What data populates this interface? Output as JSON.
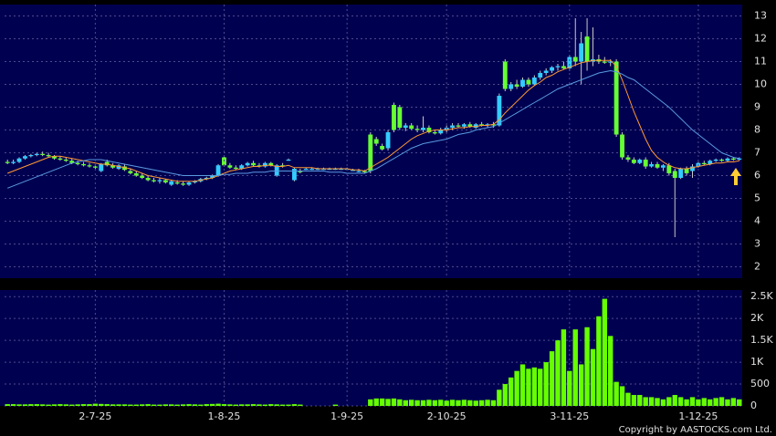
{
  "chart_data": [
    {
      "type": "candlestick",
      "up_color": "#33ccff",
      "down_color": "#66ff33",
      "wick_color": "#c8c8c8",
      "ylim": [
        1.5,
        13.5
      ],
      "yticks": [
        2,
        3,
        4,
        5,
        6,
        7,
        8,
        9,
        10,
        11,
        12,
        13
      ],
      "grid": true,
      "candles": [
        [
          6.6,
          6.7,
          6.5,
          6.55
        ],
        [
          6.55,
          6.7,
          6.5,
          6.6
        ],
        [
          6.6,
          6.8,
          6.55,
          6.75
        ],
        [
          6.75,
          6.9,
          6.7,
          6.85
        ],
        [
          6.85,
          6.95,
          6.8,
          6.9
        ],
        [
          6.9,
          7.0,
          6.85,
          6.95
        ],
        [
          6.95,
          7.05,
          6.85,
          6.9
        ],
        [
          6.9,
          7.0,
          6.8,
          6.85
        ],
        [
          6.85,
          6.9,
          6.7,
          6.75
        ],
        [
          6.75,
          6.85,
          6.65,
          6.7
        ],
        [
          6.7,
          6.8,
          6.6,
          6.65
        ],
        [
          6.65,
          6.75,
          6.5,
          6.55
        ],
        [
          6.55,
          6.65,
          6.45,
          6.5
        ],
        [
          6.5,
          6.6,
          6.4,
          6.45
        ],
        [
          6.45,
          6.55,
          6.35,
          6.4
        ],
        [
          6.4,
          6.5,
          6.3,
          6.35
        ],
        [
          6.2,
          6.55,
          6.15,
          6.5
        ],
        [
          6.6,
          6.7,
          6.4,
          6.45
        ],
        [
          6.45,
          6.55,
          6.3,
          6.35
        ],
        [
          6.3,
          6.5,
          6.25,
          6.45
        ],
        [
          6.4,
          6.5,
          6.2,
          6.25
        ],
        [
          6.2,
          6.3,
          6.05,
          6.1
        ],
        [
          6.1,
          6.2,
          5.95,
          6.0
        ],
        [
          6.0,
          6.1,
          5.85,
          5.9
        ],
        [
          5.9,
          6.0,
          5.75,
          5.8
        ],
        [
          5.8,
          5.9,
          5.7,
          5.75
        ],
        [
          5.75,
          5.9,
          5.65,
          5.8
        ],
        [
          5.8,
          5.85,
          5.65,
          5.7
        ],
        [
          5.6,
          5.8,
          5.55,
          5.75
        ],
        [
          5.7,
          5.8,
          5.6,
          5.65
        ],
        [
          5.65,
          5.75,
          5.55,
          5.6
        ],
        [
          5.6,
          5.75,
          5.55,
          5.7
        ],
        [
          5.7,
          5.8,
          5.65,
          5.75
        ],
        [
          5.75,
          5.9,
          5.7,
          5.85
        ],
        [
          5.85,
          5.95,
          5.8,
          5.9
        ],
        [
          5.9,
          6.05,
          5.85,
          6.0
        ],
        [
          6.0,
          6.5,
          5.95,
          6.45
        ],
        [
          6.8,
          6.85,
          6.4,
          6.45
        ],
        [
          6.45,
          6.55,
          6.3,
          6.35
        ],
        [
          6.35,
          6.45,
          6.25,
          6.3
        ],
        [
          6.3,
          6.5,
          6.25,
          6.45
        ],
        [
          6.45,
          6.6,
          6.4,
          6.55
        ],
        [
          6.55,
          6.65,
          6.4,
          6.45
        ],
        [
          6.45,
          6.55,
          6.35,
          6.4
        ],
        [
          6.4,
          6.6,
          6.35,
          6.55
        ],
        [
          6.55,
          6.6,
          6.4,
          6.45
        ],
        [
          6.0,
          6.5,
          5.95,
          6.45
        ],
        [
          6.45,
          6.55,
          6.35,
          6.4
        ],
        [
          6.7,
          6.75,
          6.65,
          6.7
        ],
        [
          5.8,
          6.35,
          5.75,
          6.3
        ],
        [
          6.2,
          6.3,
          6.1,
          6.15
        ],
        [
          6.3,
          6.35,
          6.25,
          6.3
        ],
        [
          6.3,
          6.35,
          6.25,
          6.3
        ],
        [
          6.3,
          6.35,
          6.25,
          6.3
        ],
        [
          6.3,
          6.35,
          6.25,
          6.3
        ],
        [
          6.3,
          6.35,
          6.25,
          6.3
        ],
        [
          6.3,
          6.35,
          6.25,
          6.3
        ],
        [
          6.3,
          6.35,
          6.25,
          6.3
        ],
        [
          6.3,
          6.35,
          6.25,
          6.3
        ],
        [
          6.25,
          6.3,
          6.2,
          6.25
        ],
        [
          6.2,
          6.3,
          6.15,
          6.2
        ],
        [
          6.2,
          6.25,
          6.1,
          6.15
        ],
        [
          7.8,
          7.9,
          6.1,
          6.2
        ],
        [
          7.6,
          7.7,
          7.3,
          7.4
        ],
        [
          7.3,
          7.4,
          7.1,
          7.15
        ],
        [
          7.2,
          8.0,
          7.1,
          7.9
        ],
        [
          9.1,
          9.2,
          7.9,
          8.0
        ],
        [
          9.0,
          9.1,
          8.0,
          8.1
        ],
        [
          8.1,
          8.3,
          7.95,
          8.2
        ],
        [
          8.2,
          8.3,
          8.0,
          8.05
        ],
        [
          8.05,
          8.2,
          7.9,
          8.0
        ],
        [
          8.0,
          8.6,
          7.9,
          8.1
        ],
        [
          8.1,
          8.2,
          7.85,
          7.9
        ],
        [
          7.9,
          8.0,
          7.8,
          7.85
        ],
        [
          7.85,
          8.1,
          7.8,
          8.0
        ],
        [
          8.0,
          8.2,
          7.9,
          8.1
        ],
        [
          8.1,
          8.3,
          8.0,
          8.2
        ],
        [
          8.2,
          8.3,
          8.1,
          8.15
        ],
        [
          8.15,
          8.3,
          8.05,
          8.25
        ],
        [
          8.25,
          8.35,
          8.1,
          8.15
        ],
        [
          8.1,
          8.3,
          8.05,
          8.25
        ],
        [
          8.25,
          8.35,
          8.15,
          8.2
        ],
        [
          8.2,
          8.3,
          8.1,
          8.25
        ],
        [
          8.25,
          8.35,
          8.1,
          8.2
        ],
        [
          8.2,
          9.6,
          8.15,
          9.5
        ],
        [
          11.0,
          11.1,
          9.7,
          9.8
        ],
        [
          9.8,
          10.1,
          9.7,
          10.0
        ],
        [
          10.0,
          10.2,
          9.8,
          9.9
        ],
        [
          9.9,
          10.3,
          9.85,
          10.2
        ],
        [
          10.2,
          10.3,
          9.9,
          10.0
        ],
        [
          10.0,
          10.4,
          9.95,
          10.3
        ],
        [
          10.3,
          10.6,
          10.2,
          10.5
        ],
        [
          10.5,
          10.7,
          10.4,
          10.6
        ],
        [
          10.6,
          10.8,
          10.5,
          10.75
        ],
        [
          10.75,
          10.9,
          10.6,
          10.8
        ],
        [
          10.8,
          11.0,
          10.65,
          10.7
        ],
        [
          10.7,
          11.3,
          10.6,
          11.2
        ],
        [
          11.2,
          12.9,
          10.8,
          11.0
        ],
        [
          11.0,
          12.3,
          10.0,
          11.8
        ],
        [
          12.1,
          12.9,
          10.6,
          11.0
        ],
        [
          11.0,
          12.5,
          10.8,
          11.1
        ],
        [
          11.1,
          11.3,
          10.9,
          11.0
        ],
        [
          11.0,
          11.2,
          10.9,
          10.95
        ],
        [
          10.95,
          11.1,
          10.8,
          11.0
        ],
        [
          11.0,
          11.1,
          7.7,
          7.8
        ],
        [
          7.8,
          7.9,
          6.7,
          6.8
        ],
        [
          6.8,
          6.9,
          6.6,
          6.7
        ],
        [
          6.7,
          6.8,
          6.5,
          6.55
        ],
        [
          6.55,
          6.75,
          6.5,
          6.7
        ],
        [
          6.7,
          6.8,
          6.3,
          6.4
        ],
        [
          6.4,
          6.6,
          6.35,
          6.5
        ],
        [
          6.5,
          6.6,
          6.3,
          6.35
        ],
        [
          6.35,
          6.5,
          6.2,
          6.45
        ],
        [
          6.45,
          6.55,
          6.0,
          6.1
        ],
        [
          6.2,
          6.3,
          3.3,
          5.9
        ],
        [
          5.9,
          6.35,
          5.85,
          6.3
        ],
        [
          6.3,
          6.4,
          6.0,
          6.1
        ],
        [
          6.2,
          6.5,
          5.9,
          6.4
        ],
        [
          6.4,
          6.6,
          6.35,
          6.55
        ],
        [
          6.55,
          6.65,
          6.45,
          6.5
        ],
        [
          6.5,
          6.7,
          6.45,
          6.65
        ],
        [
          6.65,
          6.75,
          6.6,
          6.7
        ],
        [
          6.7,
          6.75,
          6.6,
          6.65
        ],
        [
          6.65,
          6.8,
          6.6,
          6.75
        ],
        [
          6.75,
          6.8,
          6.65,
          6.7
        ],
        [
          6.7,
          6.8,
          6.65,
          6.75
        ]
      ],
      "series": [
        {
          "color": "#ff9933",
          "values": [
            6.1,
            6.2,
            6.3,
            6.4,
            6.5,
            6.6,
            6.7,
            6.8,
            6.85,
            6.85,
            6.8,
            6.75,
            6.7,
            6.65,
            6.6,
            6.55,
            6.5,
            6.5,
            6.45,
            6.4,
            6.35,
            6.3,
            6.2,
            6.1,
            6.0,
            5.95,
            5.9,
            5.85,
            5.8,
            5.75,
            5.75,
            5.75,
            5.75,
            5.8,
            5.85,
            5.9,
            6.0,
            6.1,
            6.2,
            6.25,
            6.3,
            6.35,
            6.4,
            6.4,
            6.45,
            6.45,
            6.4,
            6.4,
            6.45,
            6.35,
            6.35,
            6.35,
            6.35,
            6.3,
            6.3,
            6.3,
            6.3,
            6.3,
            6.3,
            6.25,
            6.25,
            6.2,
            6.35,
            6.5,
            6.65,
            6.8,
            7.0,
            7.2,
            7.4,
            7.6,
            7.75,
            7.85,
            7.95,
            8.0,
            8.0,
            8.0,
            8.05,
            8.1,
            8.1,
            8.15,
            8.15,
            8.2,
            8.2,
            8.25,
            8.45,
            8.75,
            9.0,
            9.25,
            9.5,
            9.75,
            9.95,
            10.1,
            10.3,
            10.4,
            10.55,
            10.65,
            10.75,
            10.85,
            10.95,
            11.0,
            11.05,
            11.05,
            11.05,
            11.05,
            10.8,
            10.2,
            9.5,
            8.8,
            8.2,
            7.6,
            7.1,
            6.8,
            6.6,
            6.45,
            6.35,
            6.3,
            6.3,
            6.35,
            6.4,
            6.45,
            6.5,
            6.55,
            6.55,
            6.6,
            6.6,
            6.65
          ]
        },
        {
          "color": "#5a9be0",
          "values": [
            5.45,
            5.55,
            5.65,
            5.75,
            5.85,
            5.95,
            6.05,
            6.15,
            6.25,
            6.35,
            6.45,
            6.55,
            6.6,
            6.65,
            6.7,
            6.7,
            6.7,
            6.65,
            6.6,
            6.55,
            6.5,
            6.45,
            6.4,
            6.35,
            6.3,
            6.25,
            6.2,
            6.15,
            6.1,
            6.05,
            6.0,
            6.0,
            6.0,
            6.0,
            6.0,
            6.0,
            6.0,
            6.05,
            6.05,
            6.1,
            6.1,
            6.1,
            6.15,
            6.15,
            6.15,
            6.2,
            6.2,
            6.2,
            6.2,
            6.2,
            6.2,
            6.2,
            6.2,
            6.2,
            6.2,
            6.15,
            6.15,
            6.15,
            6.1,
            6.1,
            6.1,
            6.1,
            6.2,
            6.3,
            6.45,
            6.6,
            6.75,
            6.9,
            7.05,
            7.2,
            7.3,
            7.4,
            7.45,
            7.5,
            7.55,
            7.6,
            7.7,
            7.8,
            7.85,
            7.9,
            8.0,
            8.05,
            8.1,
            8.15,
            8.3,
            8.45,
            8.6,
            8.75,
            8.9,
            9.05,
            9.2,
            9.35,
            9.5,
            9.65,
            9.8,
            9.9,
            10.0,
            10.1,
            10.2,
            10.3,
            10.4,
            10.5,
            10.55,
            10.6,
            10.55,
            10.45,
            10.3,
            10.2,
            10.0,
            9.8,
            9.6,
            9.4,
            9.2,
            9.0,
            8.75,
            8.5,
            8.25,
            8.0,
            7.8,
            7.6,
            7.4,
            7.2,
            7.0,
            6.9,
            6.8,
            6.75
          ]
        }
      ]
    },
    {
      "type": "bar",
      "color": "#66ff00",
      "grid": true,
      "ylim": [
        0,
        2650
      ],
      "yticks": [
        0,
        500,
        {
          "value": 1000,
          "label": "1K"
        },
        {
          "value": 1500,
          "label": "1.5K"
        },
        {
          "value": 2000,
          "label": "2K"
        },
        {
          "value": 2500,
          "label": "2.5K"
        }
      ],
      "categories": [
        null,
        null,
        null,
        null,
        null,
        null,
        null,
        null,
        null,
        null,
        null,
        null,
        null,
        null,
        null,
        "2-7-25",
        null,
        null,
        null,
        null,
        null,
        null,
        null,
        null,
        null,
        null,
        null,
        null,
        null,
        null,
        null,
        null,
        null,
        null,
        null,
        null,
        null,
        "1-8-25",
        null,
        null,
        null,
        null,
        null,
        null,
        null,
        null,
        null,
        null,
        null,
        null,
        null,
        null,
        null,
        null,
        null,
        null,
        null,
        null,
        "1-9-25",
        null,
        null,
        null,
        null,
        null,
        null,
        null,
        null,
        null,
        null,
        null,
        null,
        null,
        null,
        null,
        null,
        "2-10-25",
        null,
        null,
        null,
        null,
        null,
        null,
        null,
        null,
        null,
        null,
        null,
        null,
        null,
        null,
        null,
        null,
        null,
        null,
        null,
        null,
        "3-11-25",
        null,
        null,
        null,
        null,
        null,
        null,
        null,
        null,
        null,
        null,
        null,
        null,
        null,
        null,
        null,
        null,
        null,
        null,
        null,
        null,
        null,
        "1-12-25",
        null,
        null,
        null,
        null,
        null,
        null,
        null
      ],
      "values": [
        40,
        40,
        35,
        35,
        40,
        40,
        35,
        30,
        35,
        40,
        35,
        30,
        35,
        40,
        40,
        50,
        45,
        40,
        35,
        35,
        35,
        30,
        30,
        35,
        40,
        30,
        30,
        35,
        35,
        30,
        35,
        40,
        35,
        30,
        40,
        45,
        50,
        40,
        35,
        30,
        35,
        35,
        40,
        35,
        30,
        40,
        35,
        30,
        30,
        40,
        30,
        0,
        0,
        0,
        0,
        0,
        30,
        0,
        0,
        0,
        0,
        0,
        150,
        170,
        170,
        160,
        170,
        150,
        130,
        140,
        130,
        130,
        140,
        130,
        140,
        120,
        140,
        130,
        140,
        130,
        120,
        130,
        140,
        130,
        370,
        500,
        650,
        800,
        950,
        850,
        880,
        850,
        1000,
        1250,
        1500,
        1750,
        800,
        1750,
        950,
        1800,
        1300,
        2050,
        2450,
        1600,
        550,
        450,
        300,
        250,
        250,
        200,
        200,
        180,
        150,
        200,
        250,
        200,
        150,
        200,
        150,
        180,
        150,
        180,
        200,
        150,
        180,
        150
      ]
    }
  ],
  "footer": "Copyright by AASTOCKS.com Ltd."
}
